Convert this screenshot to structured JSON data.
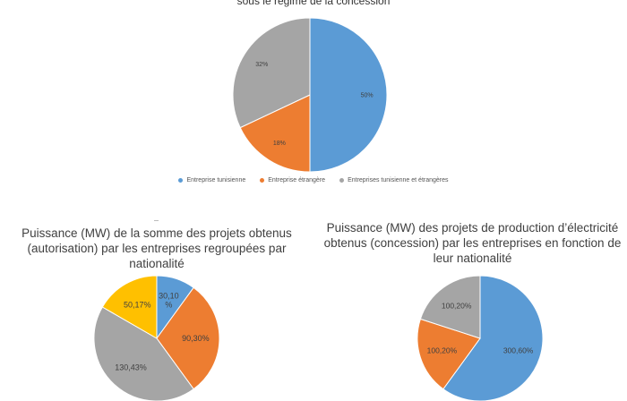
{
  "chart_data": [
    {
      "type": "pie",
      "title": "sous le régime de la concession",
      "categories": [
        "Entreprise tunisienne",
        "Entreprise étrangère",
        "Entreprises tunisienne et étrangères"
      ],
      "values": [
        50,
        18,
        32
      ],
      "labels": [
        "50%",
        "18%",
        "32%"
      ],
      "colors": [
        "#5b9bd5",
        "#ed7d31",
        "#a5a5a5"
      ],
      "legend": "bottom"
    },
    {
      "type": "pie",
      "title": "Puissance (MW) de la somme des projets obtenus (autorisation) par les entreprises regroupées par nationalité",
      "values": [
        30.1,
        90.3,
        130.43,
        50.17
      ],
      "labels": [
        "30,10 %",
        "90,30%",
        "130,43%",
        "50,17%"
      ],
      "colors": [
        "#5b9bd5",
        "#ed7d31",
        "#a5a5a5",
        "#ffc000"
      ]
    },
    {
      "type": "pie",
      "title": "Puissance (MW) des projets de production d’électricité obtenus (concession) par les entreprises en fonction de leur nationalité",
      "values": [
        300.6,
        100.2,
        100.2
      ],
      "labels": [
        "300,60%",
        "100,20%",
        "100,20%"
      ],
      "colors": [
        "#5b9bd5",
        "#ed7d31",
        "#a5a5a5"
      ]
    }
  ]
}
